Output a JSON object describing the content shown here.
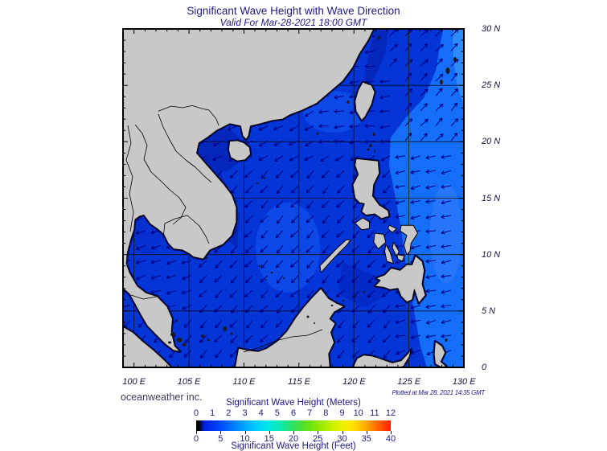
{
  "page": {
    "title": "Significant Wave Height with Wave Direction",
    "subtitle": "Valid For Mar-28-2021 18:00 GMT"
  },
  "credit": "oceanweather inc.",
  "plotted_at": "Plotted at Mar 28, 2021 14:35 GMT",
  "axes": {
    "x_labels": [
      "100 E",
      "105 E",
      "110 E",
      "115 E",
      "120 E",
      "125 E",
      "130 E"
    ],
    "y_labels": [
      "30 N",
      "25 N",
      "20 N",
      "15 N",
      "10 N",
      "5 N",
      "0"
    ]
  },
  "legend": {
    "meters_label": "Significant Wave Height (Meters)",
    "feet_label": "Significant Wave Height (Feet)",
    "meters_ticks": [
      "0",
      "1",
      "2",
      "3",
      "4",
      "5",
      "6",
      "7",
      "8",
      "9",
      "10",
      "11",
      "12"
    ],
    "feet_ticks": [
      "0",
      "5",
      "10",
      "15",
      "20",
      "25",
      "30",
      "35",
      "40"
    ],
    "colorbar_stops": [
      [
        "0%",
        "#000000"
      ],
      [
        "1.5%",
        "#000000"
      ],
      [
        "4%",
        "#0020e0"
      ],
      [
        "12%",
        "#0048ff"
      ],
      [
        "22%",
        "#0090ff"
      ],
      [
        "30%",
        "#00c8ff"
      ],
      [
        "37%",
        "#00e8e8"
      ],
      [
        "44%",
        "#10e8a8"
      ],
      [
        "50%",
        "#30e060"
      ],
      [
        "56%",
        "#58e020"
      ],
      [
        "63%",
        "#90e800"
      ],
      [
        "70%",
        "#c8f000"
      ],
      [
        "76%",
        "#f0f000"
      ],
      [
        "81%",
        "#ffe000"
      ],
      [
        "87%",
        "#ffac00"
      ],
      [
        "93%",
        "#ff6800"
      ],
      [
        "100%",
        "#ff2000"
      ]
    ]
  },
  "colors": {
    "text_navy": "#1b1b82",
    "axis_text": "#14143c",
    "credit_text": "#3c3c5a",
    "land": "#c8c8c8",
    "coastline": "#000000",
    "ocean_base": "#0435d6",
    "ocean_light": "#146ef8",
    "ocean_lighter": "#2e8bfa",
    "ocean_dark": "#0527bc",
    "arrow": "#000082"
  },
  "map_data": {
    "type": "geographic wave field map",
    "region": "South China Sea and Western Pacific",
    "lon_range_deg_e": [
      99,
      130
    ],
    "lat_range_deg_n": [
      0,
      30
    ],
    "grid_interval_deg": 5,
    "wave_height_estimates_m": {
      "south_china_sea": "1-1.5",
      "gulf_of_thailand": "~1",
      "gulf_of_tonkin": "0.5-1",
      "pacific_east_of_philippines": "1.5-2.5",
      "coastal_margins": "<0.5"
    },
    "wave_direction_summary": {
      "south_china_sea": "toward SW",
      "east_of_taiwan_and_luzon_strait_north": "toward NE",
      "east_of_philippines": "toward W",
      "gulf_of_thailand": "toward W"
    }
  }
}
